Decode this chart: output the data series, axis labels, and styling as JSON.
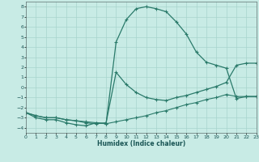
{
  "xlabel": "Humidex (Indice chaleur)",
  "bg_color": "#c8ebe5",
  "grid_color": "#a8d5ce",
  "line_color": "#2a7a6a",
  "xlim": [
    0,
    23
  ],
  "ylim": [
    -4.5,
    8.5
  ],
  "xticks": [
    0,
    1,
    2,
    3,
    4,
    5,
    6,
    7,
    8,
    9,
    10,
    11,
    12,
    13,
    14,
    15,
    16,
    17,
    18,
    19,
    20,
    21,
    22,
    23
  ],
  "yticks": [
    -4,
    -3,
    -2,
    -1,
    0,
    1,
    2,
    3,
    4,
    5,
    6,
    7,
    8
  ],
  "curve1_x": [
    0,
    1,
    2,
    3,
    4,
    5,
    6,
    7,
    8,
    9,
    10,
    11,
    12,
    13,
    14,
    15,
    16,
    17,
    18,
    19,
    20,
    21,
    22,
    23
  ],
  "curve1_y": [
    -2.5,
    -3.0,
    -3.2,
    -3.2,
    -3.5,
    -3.7,
    -3.8,
    -3.5,
    -3.6,
    4.5,
    6.7,
    7.8,
    8.0,
    7.8,
    7.5,
    6.5,
    5.3,
    3.5,
    2.5,
    2.2,
    1.9,
    -1.1,
    -0.9,
    -0.9
  ],
  "curve2_x": [
    0,
    1,
    2,
    3,
    4,
    5,
    6,
    7,
    8,
    9,
    10,
    11,
    12,
    13,
    14,
    15,
    16,
    17,
    18,
    19,
    20,
    21,
    22,
    23
  ],
  "curve2_y": [
    -2.5,
    -2.8,
    -3.0,
    -3.0,
    -3.2,
    -3.3,
    -3.5,
    -3.6,
    -3.5,
    1.5,
    0.3,
    -0.5,
    -1.0,
    -1.2,
    -1.3,
    -1.0,
    -0.8,
    -0.5,
    -0.2,
    0.1,
    0.5,
    2.2,
    2.4,
    2.4
  ],
  "curve3_x": [
    0,
    1,
    2,
    3,
    4,
    5,
    6,
    7,
    8,
    9,
    10,
    11,
    12,
    13,
    14,
    15,
    16,
    17,
    18,
    19,
    20,
    21,
    22,
    23
  ],
  "curve3_y": [
    -2.5,
    -2.8,
    -3.0,
    -3.0,
    -3.2,
    -3.3,
    -3.4,
    -3.5,
    -3.6,
    -3.4,
    -3.2,
    -3.0,
    -2.8,
    -2.5,
    -2.3,
    -2.0,
    -1.7,
    -1.5,
    -1.2,
    -1.0,
    -0.7,
    -0.9,
    -0.9,
    -0.9
  ]
}
